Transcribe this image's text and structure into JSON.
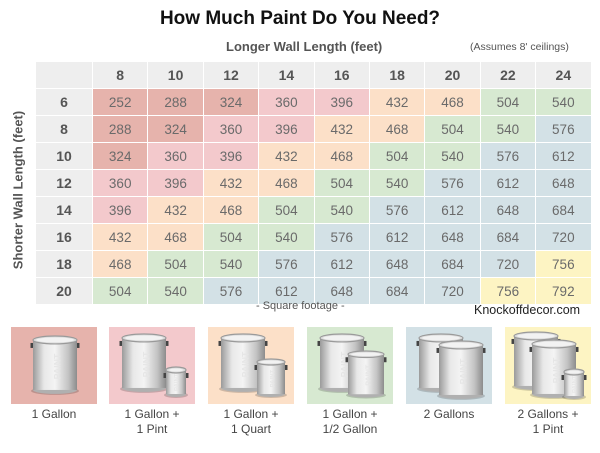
{
  "title": "How Much Paint Do You Need?",
  "x_axis_label": "Longer Wall Length (feet)",
  "note": "(Assumes 8' ceilings)",
  "y_axis_label": "Shorter Wall Length (feet)",
  "footer_label": "- Square footage -",
  "brand": "Knockoffdecor.com",
  "colors": {
    "dark_red": "#e6b3ac",
    "pink": "#f3c9cc",
    "peach": "#fce0c8",
    "green": "#d7e9d1",
    "blue": "#d3e1e6",
    "yellow": "#fdf4c3",
    "header_bg": "#eeeeee"
  },
  "columns": [
    "8",
    "10",
    "12",
    "14",
    "16",
    "18",
    "20",
    "22",
    "24"
  ],
  "rows": [
    {
      "label": "6",
      "values": [
        "252",
        "288",
        "324",
        "360",
        "396",
        "432",
        "468",
        "504",
        "540"
      ]
    },
    {
      "label": "8",
      "values": [
        "288",
        "324",
        "360",
        "396",
        "432",
        "468",
        "504",
        "540",
        "576"
      ]
    },
    {
      "label": "10",
      "values": [
        "324",
        "360",
        "396",
        "432",
        "468",
        "504",
        "540",
        "576",
        "612"
      ]
    },
    {
      "label": "12",
      "values": [
        "360",
        "396",
        "432",
        "468",
        "504",
        "540",
        "576",
        "612",
        "648"
      ]
    },
    {
      "label": "14",
      "values": [
        "396",
        "432",
        "468",
        "504",
        "540",
        "576",
        "612",
        "648",
        "684"
      ]
    },
    {
      "label": "16",
      "values": [
        "432",
        "468",
        "504",
        "540",
        "576",
        "612",
        "648",
        "684",
        "720"
      ]
    },
    {
      "label": "18",
      "values": [
        "468",
        "504",
        "540",
        "576",
        "612",
        "648",
        "684",
        "720",
        "756"
      ]
    },
    {
      "label": "20",
      "values": [
        "504",
        "540",
        "576",
        "612",
        "648",
        "684",
        "720",
        "756",
        "792"
      ]
    }
  ],
  "legend": [
    {
      "label_line1": "1 Gallon",
      "label_line2": "",
      "color": "dark_red",
      "cans": [
        "gallon"
      ]
    },
    {
      "label_line1": "1 Gallon +",
      "label_line2": "1 Pint",
      "color": "pink",
      "cans": [
        "gallon",
        "pint"
      ]
    },
    {
      "label_line1": "1 Gallon +",
      "label_line2": "1 Quart",
      "color": "peach",
      "cans": [
        "gallon",
        "quart"
      ]
    },
    {
      "label_line1": "1 Gallon +",
      "label_line2": "1/2 Gallon",
      "color": "green",
      "cans": [
        "gallon",
        "half-gallon"
      ]
    },
    {
      "label_line1": "2 Gallons",
      "label_line2": "",
      "color": "blue",
      "cans": [
        "gallon",
        "gallon"
      ]
    },
    {
      "label_line1": "2 Gallons +",
      "label_line2": "1 Pint",
      "color": "yellow",
      "cans": [
        "gallon",
        "gallon",
        "pint"
      ]
    }
  ],
  "chart_data": {
    "type": "table",
    "title": "How Much Paint Do You Need?",
    "xlabel": "Longer Wall Length (feet)",
    "ylabel": "Shorter Wall Length (feet)",
    "annotation": "(Assumes 8' ceilings)",
    "cell_label": "Square footage",
    "columns": [
      8,
      10,
      12,
      14,
      16,
      18,
      20,
      22,
      24
    ],
    "rows": [
      6,
      8,
      10,
      12,
      14,
      16,
      18,
      20
    ],
    "values": [
      [
        252,
        288,
        324,
        360,
        396,
        432,
        468,
        504,
        540
      ],
      [
        288,
        324,
        360,
        396,
        432,
        468,
        504,
        540,
        576
      ],
      [
        324,
        360,
        396,
        432,
        468,
        504,
        540,
        576,
        612
      ],
      [
        360,
        396,
        432,
        468,
        504,
        540,
        576,
        612,
        648
      ],
      [
        396,
        432,
        468,
        504,
        540,
        576,
        612,
        648,
        684
      ],
      [
        432,
        468,
        504,
        540,
        576,
        612,
        648,
        684,
        720
      ],
      [
        468,
        504,
        540,
        576,
        612,
        648,
        684,
        720,
        756
      ],
      [
        504,
        540,
        576,
        612,
        648,
        684,
        720,
        756,
        792
      ]
    ],
    "color_legend": [
      {
        "range": "252-324",
        "paint": "1 Gallon",
        "color": "#e6b3ac"
      },
      {
        "range": "360-396",
        "paint": "1 Gallon + 1 Pint",
        "color": "#f3c9cc"
      },
      {
        "range": "432-468",
        "paint": "1 Gallon + 1 Quart",
        "color": "#fce0c8"
      },
      {
        "range": "504-540",
        "paint": "1 Gallon + 1/2 Gallon",
        "color": "#d7e9d1"
      },
      {
        "range": "576-720",
        "paint": "2 Gallons",
        "color": "#d3e1e6"
      },
      {
        "range": "756-792",
        "paint": "2 Gallons + 1 Pint",
        "color": "#fdf4c3"
      }
    ]
  }
}
